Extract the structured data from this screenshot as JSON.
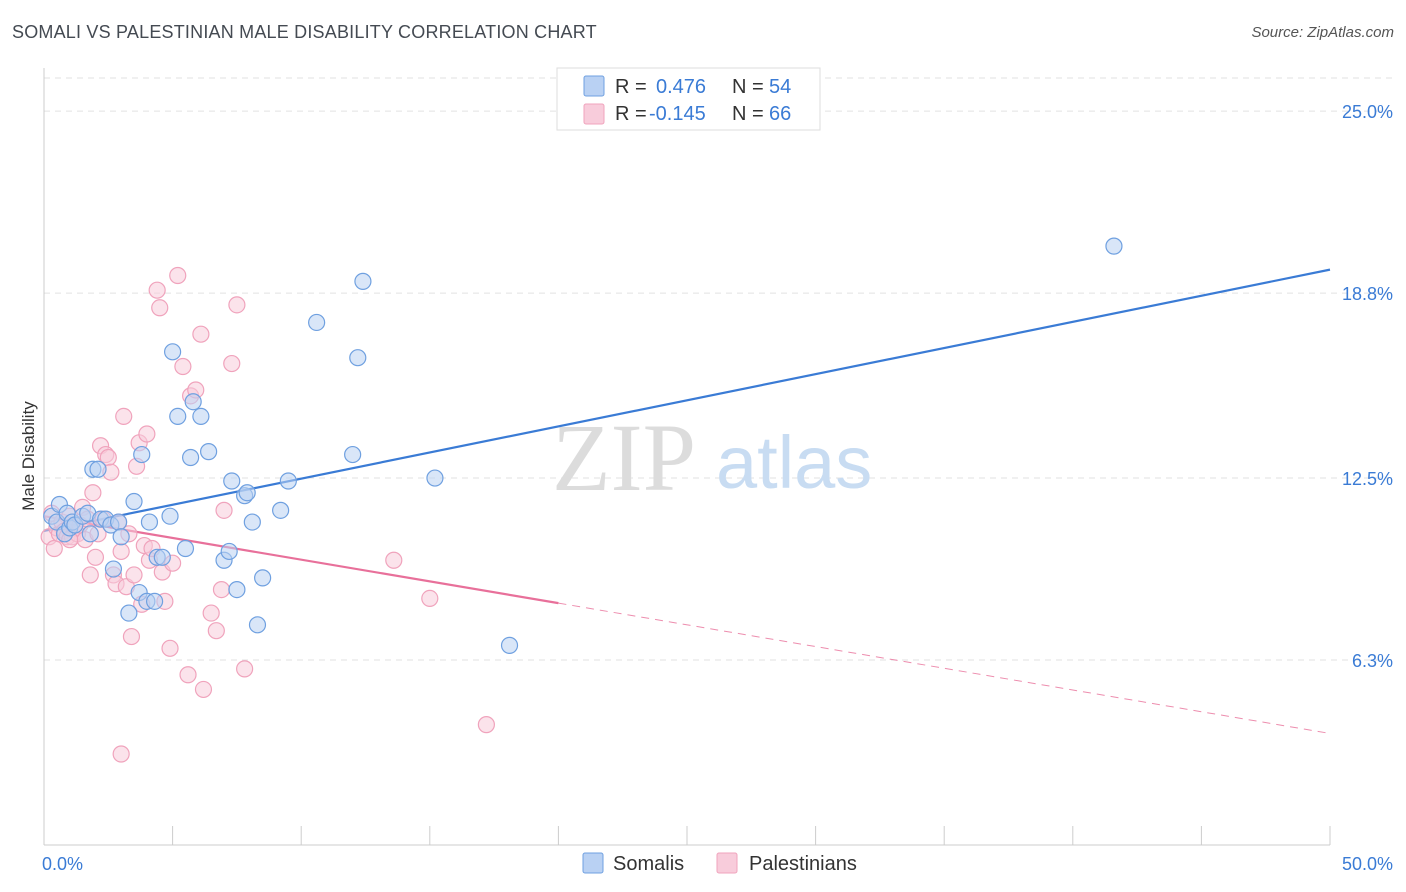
{
  "header": {
    "title": "SOMALI VS PALESTINIAN MALE DISABILITY CORRELATION CHART",
    "source": "Source: ZipAtlas.com"
  },
  "legend_box": {
    "rows": [
      {
        "r_label": "R =",
        "r_value": "0.476",
        "n_label": "N =",
        "n_value": "54",
        "color": "#6fa0e0",
        "fill": "#b9d1f3"
      },
      {
        "r_label": "R =",
        "r_value": "-0.145",
        "n_label": "N =",
        "n_value": "66",
        "color": "#f0a3bc",
        "fill": "#f8ccdb"
      }
    ]
  },
  "bottom_legend": {
    "items": [
      {
        "label": "Somalis",
        "fill": "#b9d1f3",
        "stroke": "#6fa0e0"
      },
      {
        "label": "Palestinians",
        "fill": "#f8ccdb",
        "stroke": "#f0a3bc"
      }
    ]
  },
  "watermark": {
    "zip": "ZIP",
    "atlas": "atlas"
  },
  "chart_data": {
    "type": "scatter",
    "title": "SOMALI VS PALESTINIAN MALE DISABILITY CORRELATION CHART",
    "xlabel": "",
    "ylabel": "Male Disability",
    "xlim": [
      0,
      50
    ],
    "ylim": [
      0,
      26.4
    ],
    "x_tick_labels": [
      {
        "value": 0,
        "label": "0.0%"
      },
      {
        "value": 50,
        "label": "50.0%"
      }
    ],
    "y_ticks": [
      {
        "value": 6.3,
        "label": "6.3%"
      },
      {
        "value": 12.5,
        "label": "12.5%"
      },
      {
        "value": 18.8,
        "label": "18.8%"
      },
      {
        "value": 25.0,
        "label": "25.0%"
      }
    ],
    "x_minor_ticks": [
      5,
      10,
      15,
      20,
      25,
      30,
      35,
      40,
      45,
      50
    ],
    "series": [
      {
        "name": "Somalis",
        "color": "#3a7bd5",
        "fill": "#b9d1f3",
        "stroke": "#6fa0e0",
        "trend": {
          "x0": 0,
          "y0": 10.7,
          "x1": 50,
          "y1": 19.6,
          "dashed_from": null
        },
        "points": [
          [
            0.3,
            11.2
          ],
          [
            0.5,
            11.0
          ],
          [
            0.6,
            11.6
          ],
          [
            0.8,
            10.6
          ],
          [
            0.9,
            11.3
          ],
          [
            1.0,
            10.8
          ],
          [
            1.1,
            11.0
          ],
          [
            1.2,
            10.9
          ],
          [
            1.5,
            11.2
          ],
          [
            1.7,
            11.3
          ],
          [
            1.8,
            10.6
          ],
          [
            1.9,
            12.8
          ],
          [
            2.1,
            12.8
          ],
          [
            2.2,
            11.1
          ],
          [
            2.4,
            11.1
          ],
          [
            2.6,
            10.9
          ],
          [
            2.7,
            9.4
          ],
          [
            2.9,
            11.0
          ],
          [
            3.0,
            10.5
          ],
          [
            3.3,
            7.9
          ],
          [
            3.5,
            11.7
          ],
          [
            3.7,
            8.6
          ],
          [
            3.8,
            13.3
          ],
          [
            4.0,
            8.3
          ],
          [
            4.1,
            11.0
          ],
          [
            4.3,
            8.3
          ],
          [
            4.4,
            9.8
          ],
          [
            4.6,
            9.8
          ],
          [
            4.9,
            11.2
          ],
          [
            5.0,
            16.8
          ],
          [
            5.2,
            14.6
          ],
          [
            5.5,
            10.1
          ],
          [
            5.7,
            13.2
          ],
          [
            5.8,
            15.1
          ],
          [
            6.1,
            14.6
          ],
          [
            6.4,
            13.4
          ],
          [
            7.0,
            9.7
          ],
          [
            7.2,
            10.0
          ],
          [
            7.3,
            12.4
          ],
          [
            7.5,
            8.7
          ],
          [
            7.8,
            11.9
          ],
          [
            7.9,
            12.0
          ],
          [
            8.1,
            11.0
          ],
          [
            8.3,
            7.5
          ],
          [
            8.5,
            9.1
          ],
          [
            9.2,
            11.4
          ],
          [
            9.5,
            12.4
          ],
          [
            10.6,
            17.8
          ],
          [
            12.0,
            13.3
          ],
          [
            12.2,
            16.6
          ],
          [
            12.4,
            19.2
          ],
          [
            15.2,
            12.5
          ],
          [
            18.1,
            6.8
          ],
          [
            41.6,
            20.4
          ]
        ]
      },
      {
        "name": "Palestinians",
        "color": "#e8709a",
        "fill": "#f8ccdb",
        "stroke": "#f0a3bc",
        "trend": {
          "x0": 0,
          "y0": 11.2,
          "x1": 50,
          "y1": 3.8,
          "dashed_from": 20.0
        },
        "points": [
          [
            0.2,
            10.5
          ],
          [
            0.3,
            11.3
          ],
          [
            0.4,
            10.1
          ],
          [
            0.5,
            10.8
          ],
          [
            0.6,
            10.6
          ],
          [
            0.7,
            11.0
          ],
          [
            0.8,
            10.7
          ],
          [
            0.9,
            10.5
          ],
          [
            1.0,
            11.2
          ],
          [
            1.1,
            10.5
          ],
          [
            1.2,
            10.8
          ],
          [
            1.3,
            10.6
          ],
          [
            1.4,
            10.9
          ],
          [
            1.5,
            11.5
          ],
          [
            1.6,
            10.4
          ],
          [
            1.7,
            11.1
          ],
          [
            1.8,
            9.2
          ],
          [
            1.9,
            12.0
          ],
          [
            2.0,
            9.8
          ],
          [
            2.1,
            10.6
          ],
          [
            2.2,
            13.6
          ],
          [
            2.3,
            11.1
          ],
          [
            2.4,
            13.3
          ],
          [
            2.5,
            13.2
          ],
          [
            2.6,
            12.7
          ],
          [
            2.7,
            9.2
          ],
          [
            2.8,
            8.9
          ],
          [
            2.9,
            11.0
          ],
          [
            3.0,
            10.0
          ],
          [
            3.1,
            14.6
          ],
          [
            3.2,
            8.8
          ],
          [
            3.3,
            10.6
          ],
          [
            3.4,
            7.1
          ],
          [
            3.5,
            9.2
          ],
          [
            3.6,
            12.9
          ],
          [
            3.7,
            13.7
          ],
          [
            3.8,
            8.2
          ],
          [
            3.9,
            10.2
          ],
          [
            4.0,
            14.0
          ],
          [
            4.1,
            9.7
          ],
          [
            4.2,
            10.1
          ],
          [
            4.4,
            18.9
          ],
          [
            4.5,
            18.3
          ],
          [
            4.6,
            9.3
          ],
          [
            4.7,
            8.3
          ],
          [
            4.9,
            6.7
          ],
          [
            5.0,
            9.6
          ],
          [
            5.2,
            19.4
          ],
          [
            5.4,
            16.3
          ],
          [
            5.6,
            5.8
          ],
          [
            5.7,
            15.3
          ],
          [
            5.9,
            15.5
          ],
          [
            6.1,
            17.4
          ],
          [
            6.2,
            5.3
          ],
          [
            6.5,
            7.9
          ],
          [
            6.7,
            7.3
          ],
          [
            6.9,
            8.7
          ],
          [
            7.0,
            11.4
          ],
          [
            7.3,
            16.4
          ],
          [
            7.5,
            18.4
          ],
          [
            7.8,
            6.0
          ],
          [
            3.0,
            3.1
          ],
          [
            13.6,
            9.7
          ],
          [
            15.0,
            8.4
          ],
          [
            17.2,
            4.1
          ],
          [
            1.0,
            10.4
          ]
        ]
      }
    ]
  }
}
